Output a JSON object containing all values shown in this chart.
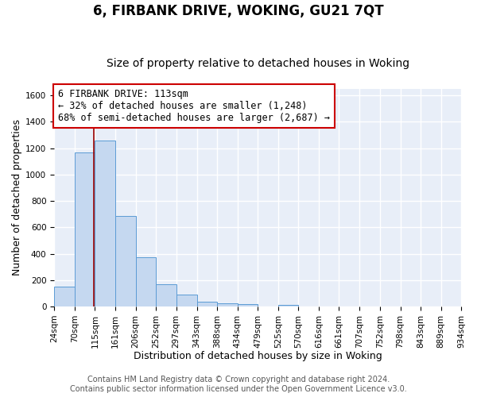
{
  "title": "6, FIRBANK DRIVE, WOKING, GU21 7QT",
  "subtitle": "Size of property relative to detached houses in Woking",
  "xlabel": "Distribution of detached houses by size in Woking",
  "ylabel": "Number of detached properties",
  "bin_edges": [
    24,
    70,
    115,
    161,
    206,
    252,
    297,
    343,
    388,
    434,
    479,
    525,
    570,
    616,
    661,
    707,
    752,
    798,
    843,
    889,
    934
  ],
  "bar_heights": [
    148,
    1170,
    1255,
    685,
    370,
    170,
    90,
    35,
    25,
    18,
    0,
    10,
    0,
    0,
    0,
    0,
    0,
    0,
    0,
    0
  ],
  "bar_color": "#c5d8f0",
  "bar_edge_color": "#5b9bd5",
  "property_line_x": 113,
  "property_line_color": "#990000",
  "annotation_line1": "6 FIRBANK DRIVE: 113sqm",
  "annotation_line2": "← 32% of detached houses are smaller (1,248)",
  "annotation_line3": "68% of semi-detached houses are larger (2,687) →",
  "annotation_box_color": "#ffffff",
  "annotation_box_edge_color": "#cc0000",
  "ylim": [
    0,
    1650
  ],
  "yticks": [
    0,
    200,
    400,
    600,
    800,
    1000,
    1200,
    1400,
    1600
  ],
  "tick_labels": [
    "24sqm",
    "70sqm",
    "115sqm",
    "161sqm",
    "206sqm",
    "252sqm",
    "297sqm",
    "343sqm",
    "388sqm",
    "434sqm",
    "479sqm",
    "525sqm",
    "570sqm",
    "616sqm",
    "661sqm",
    "707sqm",
    "752sqm",
    "798sqm",
    "843sqm",
    "889sqm",
    "934sqm"
  ],
  "footer1": "Contains HM Land Registry data © Crown copyright and database right 2024.",
  "footer2": "Contains public sector information licensed under the Open Government Licence v3.0.",
  "plot_bg_color": "#e8eef8",
  "fig_bg_color": "#ffffff",
  "grid_color": "#ffffff",
  "title_fontsize": 12,
  "subtitle_fontsize": 10,
  "axis_label_fontsize": 9,
  "tick_fontsize": 7.5,
  "annotation_fontsize": 8.5,
  "footer_fontsize": 7
}
